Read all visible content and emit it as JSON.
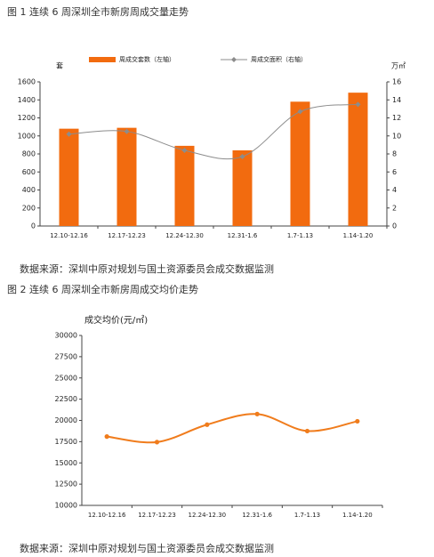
{
  "chart_data": [
    {
      "type": "bar",
      "title": "图 1   连续 6 周深圳全市新房周成交量走势",
      "categories": [
        "12.10-12.16",
        "12.17-12.23",
        "12.24-12.30",
        "12.31-1.6",
        "1.7-1.13",
        "1.14-1.20"
      ],
      "series": [
        {
          "name": "周成交套数（左轴）",
          "color": "#f26b0f",
          "type": "bar",
          "values": [
            1080,
            1090,
            890,
            840,
            1380,
            1480
          ]
        },
        {
          "name": "周成交面积（右轴）",
          "color": "#8c8c8c",
          "type": "line",
          "axis": "y2",
          "values": [
            10.2,
            10.5,
            8.4,
            7.7,
            12.7,
            13.5
          ]
        }
      ],
      "ylabel": "套",
      "y2label": "万㎡",
      "ylim": [
        0,
        1600
      ],
      "yticks": [
        0,
        200,
        400,
        600,
        800,
        1000,
        1200,
        1400,
        1600
      ],
      "y2lim": [
        0,
        16
      ],
      "y2ticks": [
        0,
        2,
        4,
        6,
        8,
        10,
        12,
        14,
        16
      ],
      "source": "数据来源：深圳中原对规划与国土资源委员会成交数据监测"
    },
    {
      "type": "line",
      "title": "图 2   连续 6 周深圳全市新房周成交均价走势",
      "categories": [
        "12.10-12.16",
        "12.17-12.23",
        "12.24-12.30",
        "12.31-1.6",
        "1.7-1.13",
        "1.14-1.20"
      ],
      "values": [
        18100,
        17450,
        19500,
        20750,
        18750,
        19900
      ],
      "color": "#f07c1c",
      "ylabel": "成交均价(元/㎡)",
      "ylim": [
        10000,
        30000
      ],
      "yticks": [
        10000,
        12500,
        15000,
        17500,
        20000,
        22500,
        25000,
        27500,
        30000
      ],
      "source": "数据来源：深圳中原对规划与国土资源委员会成交数据监测"
    }
  ]
}
